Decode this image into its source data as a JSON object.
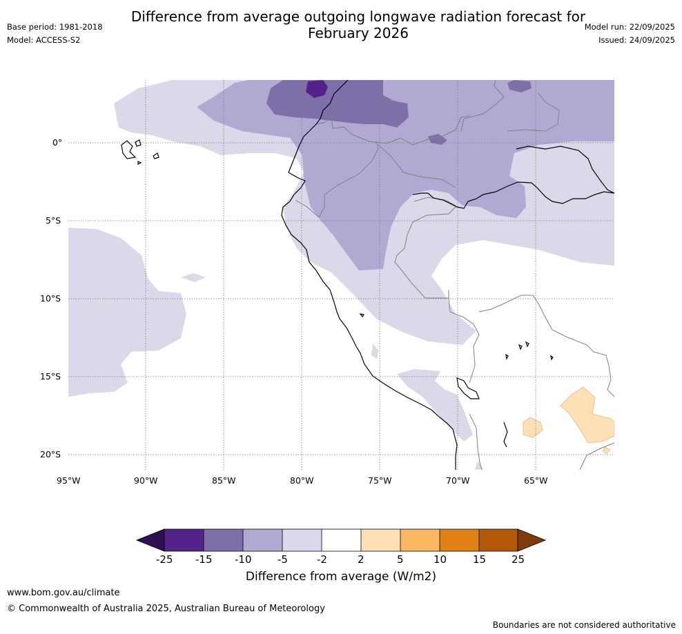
{
  "header": {
    "title_line1": "Difference from average outgoing longwave radiation forecast for",
    "title_line2": "February 2026",
    "base_period": "Base period: 1981-2018",
    "model": "Model: ACCESS-S2",
    "model_run": "Model run: 22/09/2025",
    "issued": "Issued: 24/09/2025"
  },
  "map": {
    "lon_labels": [
      "95°W",
      "90°W",
      "85°W",
      "80°W",
      "75°W",
      "70°W",
      "65°W"
    ],
    "lat_labels": [
      "0°",
      "5°S",
      "10°S",
      "15°S",
      "20°S"
    ]
  },
  "colorbar": {
    "title": "Difference from average (W/m2)",
    "ticks": [
      "-25",
      "-15",
      "-10",
      "-5",
      "-2",
      "2",
      "5",
      "10",
      "15",
      "25"
    ],
    "colors": {
      "below_-25": "#2d0f52",
      "-25_-15": "#54238a",
      "-15_-10": "#7e6fa8",
      "-10_-5": "#b1a9d2",
      "-5_-2": "#d9d9ea",
      "-2_2": "#ffffff",
      "2_5": "#fee0b6",
      "5_10": "#fbb862",
      "10_15": "#e08215",
      "15_25": "#b35806",
      "above_25": "#7f3b08"
    }
  },
  "footer": {
    "url": "www.bom.gov.au/climate",
    "copyright": "© Commonwealth of Australia 2025, Australian Bureau of Meteorology",
    "disclaimer": "Boundaries are not considered authoritative"
  }
}
